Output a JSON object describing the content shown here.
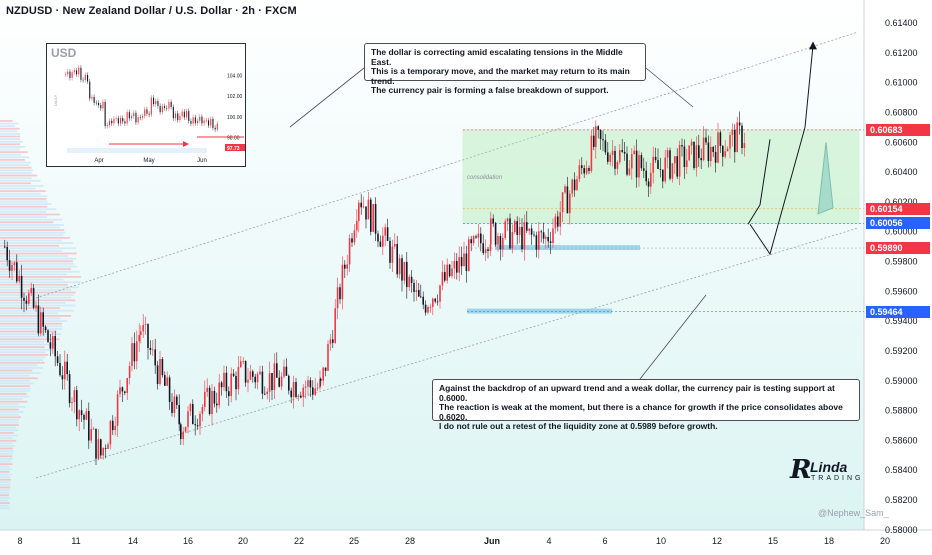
{
  "header": {
    "title": "NZDUSD · New Zealand Dollar / U.S. Dollar · 2h · FXCM"
  },
  "inset": {
    "title": "USD",
    "x_labels": [
      "Apr",
      "May",
      "Jun"
    ],
    "y_labels": [
      "104.00",
      "102.00",
      "100.00",
      "98.00"
    ],
    "side_label": "DAILY",
    "price_label": "97.73"
  },
  "notes": {
    "top": [
      "The dollar is correcting amid escalating tensions in the Middle East.",
      "This is a temporary move, and the market may return to its main trend.",
      "The currency pair is forming a false breakdown of support."
    ],
    "bottom": [
      "Against the backdrop of an upward trend and a weak dollar, the currency pair is testing support at 0.6000.",
      "The reaction is weak at the moment, but there is a chance for growth if the price consolidates above 0.6020.",
      "I do not rule out a retest of the liquidity zone at 0.5989 before growth."
    ]
  },
  "annotations": {
    "consolidation": "consolidation",
    "poi_upper": "poi",
    "poi_lower": "poi"
  },
  "branding": {
    "logo_letter": "R",
    "logo_name": "Linda",
    "logo_sub": "TRADING",
    "watermark": "@Nephew_Sam_"
  },
  "price_labels": [
    {
      "value": "0.60683",
      "color": "#f23645"
    },
    {
      "value": "0.60154",
      "color": "#f23645"
    },
    {
      "value": "0.60056",
      "color": "#2962ff"
    },
    {
      "value": "0.59890",
      "color": "#f23645"
    },
    {
      "value": "0.59464",
      "color": "#2962ff"
    }
  ],
  "colors": {
    "up": "#f23645",
    "down": "#131722",
    "zone": "#a6e8a6",
    "liquidity": "#7ec8e3",
    "trend": "#9aa0aa"
  },
  "chart_data": {
    "type": "line",
    "symbol": "NZDUSD",
    "timeframe": "2h",
    "y_ticks": [
      "0.61400",
      "0.61200",
      "0.61000",
      "0.60800",
      "0.60600",
      "0.60400",
      "0.60200",
      "0.60000",
      "0.59800",
      "0.59600",
      "0.59400",
      "0.59200",
      "0.59000",
      "0.58800",
      "0.58600",
      "0.58400",
      "0.58200",
      "0.58000"
    ],
    "x_ticks": [
      "8",
      "11",
      "14",
      "16",
      "20",
      "22",
      "25",
      "28",
      "Jun",
      "4",
      "6",
      "10",
      "12",
      "15",
      "18",
      "20"
    ],
    "ylim": [
      0.58,
      0.615
    ],
    "series": [
      {
        "x": [
          "8",
          "11",
          "14",
          "16",
          "20",
          "22",
          "25",
          "28",
          "Jun",
          "4",
          "6",
          "10",
          "12"
        ],
        "values": [
          0.599,
          0.585,
          0.5935,
          0.587,
          0.5905,
          0.5895,
          0.6025,
          0.595,
          0.6,
          0.5995,
          0.606,
          0.604,
          0.6065
        ]
      }
    ],
    "levels": [
      0.60683,
      0.60154,
      0.60056,
      0.5989,
      0.59464
    ],
    "zone": {
      "top": 0.60683,
      "bottom": 0.60056,
      "label": "consolidation"
    },
    "projection": [
      0.6005,
      0.5985,
      0.607,
      0.6125
    ]
  }
}
